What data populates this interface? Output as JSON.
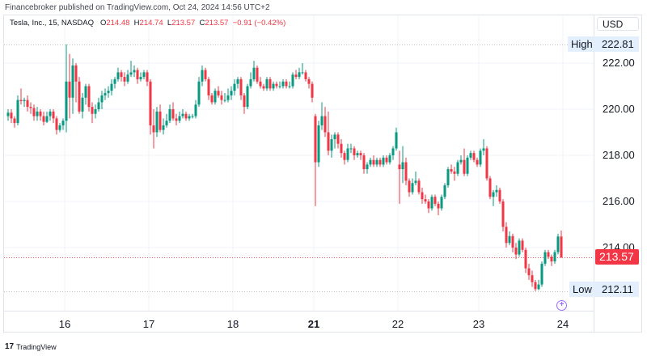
{
  "publish_line": "Financebroker published on TradingView.com, Oct 24, 2024 14:56 UTC+2",
  "legend": {
    "symbol": "Tesla, Inc., 15, NASDAQ",
    "o_label": "O",
    "o": "214.48",
    "h_label": "H",
    "h": "214.74",
    "l_label": "L",
    "l": "213.57",
    "c_label": "C",
    "c": "213.57",
    "change": "−0.91 (−0.42%)"
  },
  "currency": "USD",
  "high_tag": {
    "label": "High",
    "value": "222.81"
  },
  "low_tag": {
    "label": "Low",
    "value": "212.11"
  },
  "current_price": "213.57",
  "footer_logo": "TradingView",
  "colors": {
    "up": "#089981",
    "down": "#f23645",
    "event": "#9c6cf7"
  },
  "chart_data": {
    "type": "candlestick",
    "interval": "15",
    "yticks": [
      "222.00",
      "220.00",
      "218.00",
      "216.00",
      "214.00"
    ],
    "ylim": [
      211.5,
      223
    ],
    "high": 222.81,
    "low": 212.11,
    "last": 213.57,
    "xticks": [
      {
        "label": "16",
        "bar": 18,
        "bold": false
      },
      {
        "label": "17",
        "bar": 44,
        "bold": false
      },
      {
        "label": "18",
        "bar": 70,
        "bold": false
      },
      {
        "label": "21",
        "bar": 95,
        "bold": true
      },
      {
        "label": "22",
        "bar": 121,
        "bold": false
      },
      {
        "label": "23",
        "bar": 146,
        "bold": false
      },
      {
        "label": "24",
        "bar": 172,
        "bold": false
      }
    ],
    "ohlc": [
      [
        219.7,
        220.0,
        219.5,
        219.85
      ],
      [
        219.85,
        220.0,
        219.4,
        219.6
      ],
      [
        219.6,
        219.7,
        219.2,
        219.4
      ],
      [
        219.4,
        220.6,
        219.3,
        220.4
      ],
      [
        220.4,
        220.9,
        220.2,
        220.35
      ],
      [
        220.35,
        220.5,
        220.1,
        220.4
      ],
      [
        220.4,
        220.6,
        219.9,
        220.1
      ],
      [
        220.1,
        220.3,
        219.8,
        220.05
      ],
      [
        220.05,
        220.2,
        219.5,
        219.7
      ],
      [
        219.7,
        220.1,
        219.5,
        219.9
      ],
      [
        219.9,
        220.0,
        219.5,
        219.7
      ],
      [
        219.7,
        219.9,
        219.3,
        219.45
      ],
      [
        219.45,
        219.9,
        219.4,
        219.7
      ],
      [
        219.7,
        220.0,
        219.5,
        219.9
      ],
      [
        219.9,
        220.0,
        219.4,
        219.6
      ],
      [
        219.6,
        219.7,
        218.9,
        219.1
      ],
      [
        219.1,
        219.4,
        219.0,
        219.3
      ],
      [
        219.3,
        219.6,
        219.1,
        219.5
      ],
      [
        219.5,
        222.81,
        219.0,
        221.2
      ],
      [
        221.2,
        222.4,
        219.6,
        220.5
      ],
      [
        220.5,
        222.2,
        219.8,
        221.9
      ],
      [
        221.9,
        222.0,
        220.3,
        221.2
      ],
      [
        221.2,
        221.4,
        219.8,
        219.9
      ],
      [
        219.9,
        220.7,
        219.6,
        220.5
      ],
      [
        220.5,
        221.1,
        220.2,
        221.0
      ],
      [
        221.0,
        221.1,
        219.9,
        220.1
      ],
      [
        220.1,
        220.3,
        219.4,
        219.8
      ],
      [
        219.8,
        220.2,
        219.6,
        220.0
      ],
      [
        220.0,
        220.5,
        219.9,
        220.3
      ],
      [
        220.3,
        220.8,
        220.0,
        220.6
      ],
      [
        220.6,
        220.9,
        220.4,
        220.7
      ],
      [
        220.7,
        221.0,
        220.5,
        220.8
      ],
      [
        220.8,
        221.3,
        220.6,
        221.1
      ],
      [
        221.1,
        221.4,
        220.9,
        221.3
      ],
      [
        221.3,
        221.8,
        221.2,
        221.6
      ],
      [
        221.6,
        221.7,
        221.2,
        221.4
      ],
      [
        221.4,
        221.6,
        221.0,
        221.2
      ],
      [
        221.2,
        221.7,
        221.1,
        221.5
      ],
      [
        221.5,
        222.1,
        221.4,
        221.6
      ],
      [
        221.6,
        221.9,
        221.4,
        221.7
      ],
      [
        221.7,
        221.8,
        221.1,
        221.3
      ],
      [
        221.3,
        221.6,
        221.2,
        221.4
      ],
      [
        221.4,
        221.7,
        221.3,
        221.6
      ],
      [
        221.6,
        221.7,
        221.0,
        221.2
      ],
      [
        221.2,
        221.3,
        218.9,
        219.3
      ],
      [
        219.3,
        220.0,
        218.3,
        219.0
      ],
      [
        219.0,
        220.1,
        218.8,
        219.9
      ],
      [
        219.9,
        220.2,
        219.0,
        219.1
      ],
      [
        219.1,
        219.6,
        218.9,
        219.3
      ],
      [
        219.3,
        219.8,
        219.2,
        219.5
      ],
      [
        219.5,
        220.2,
        219.4,
        220.0
      ],
      [
        220.0,
        220.3,
        219.5,
        219.6
      ],
      [
        219.6,
        219.8,
        219.3,
        219.5
      ],
      [
        219.5,
        219.9,
        219.4,
        219.7
      ],
      [
        219.7,
        220.0,
        219.6,
        219.8
      ],
      [
        219.8,
        219.9,
        219.5,
        219.6
      ],
      [
        219.6,
        219.8,
        219.5,
        219.7
      ],
      [
        219.7,
        219.8,
        219.6,
        219.7
      ],
      [
        219.7,
        220.4,
        219.6,
        220.2
      ],
      [
        220.2,
        221.4,
        220.1,
        221.2
      ],
      [
        221.2,
        221.9,
        221.0,
        221.7
      ],
      [
        221.7,
        221.8,
        221.2,
        221.3
      ],
      [
        221.3,
        221.4,
        220.4,
        220.6
      ],
      [
        220.6,
        220.7,
        220.2,
        220.3
      ],
      [
        220.3,
        220.9,
        220.2,
        220.8
      ],
      [
        220.8,
        221.0,
        220.5,
        220.6
      ],
      [
        220.6,
        220.8,
        220.2,
        220.4
      ],
      [
        220.4,
        220.7,
        220.3,
        220.4
      ],
      [
        220.4,
        220.9,
        220.3,
        220.6
      ],
      [
        220.6,
        221.0,
        220.4,
        220.8
      ],
      [
        220.8,
        221.3,
        220.6,
        221.1
      ],
      [
        221.1,
        221.4,
        220.9,
        221.3
      ],
      [
        221.3,
        221.4,
        220.4,
        220.6
      ],
      [
        220.6,
        220.7,
        219.8,
        220.1
      ],
      [
        220.1,
        221.1,
        220.0,
        221.0
      ],
      [
        221.0,
        221.6,
        220.9,
        221.3
      ],
      [
        221.3,
        222.1,
        221.2,
        221.8
      ],
      [
        221.8,
        221.9,
        221.1,
        221.2
      ],
      [
        221.2,
        221.4,
        220.9,
        221.0
      ],
      [
        221.0,
        221.1,
        220.8,
        220.9
      ],
      [
        220.9,
        221.4,
        220.8,
        221.3
      ],
      [
        221.3,
        221.4,
        220.8,
        220.9
      ],
      [
        220.9,
        221.2,
        220.8,
        221.1
      ],
      [
        221.1,
        221.2,
        220.9,
        221.0
      ],
      [
        221.0,
        221.2,
        220.9,
        221.0
      ],
      [
        221.0,
        221.3,
        220.9,
        221.2
      ],
      [
        221.2,
        221.3,
        220.9,
        221.0
      ],
      [
        221.0,
        221.2,
        220.9,
        221.0
      ],
      [
        221.0,
        221.6,
        220.9,
        221.5
      ],
      [
        221.5,
        221.7,
        221.3,
        221.4
      ],
      [
        221.4,
        221.8,
        221.3,
        221.6
      ],
      [
        221.6,
        222.0,
        221.5,
        221.6
      ],
      [
        221.6,
        221.7,
        221.2,
        221.3
      ],
      [
        221.3,
        221.4,
        220.9,
        221.1
      ],
      [
        221.1,
        221.2,
        220.3,
        220.5
      ],
      [
        219.7,
        219.8,
        215.8,
        217.7
      ],
      [
        217.7,
        219.5,
        217.5,
        219.3
      ],
      [
        219.3,
        220.3,
        219.1,
        219.7
      ],
      [
        219.7,
        220.1,
        218.8,
        219.0
      ],
      [
        219.0,
        219.9,
        218.0,
        218.2
      ],
      [
        218.2,
        218.9,
        217.9,
        218.7
      ],
      [
        218.7,
        219.0,
        218.3,
        218.9
      ],
      [
        218.9,
        219.0,
        218.3,
        218.5
      ],
      [
        218.5,
        218.7,
        217.9,
        218.1
      ],
      [
        218.1,
        218.2,
        217.6,
        217.8
      ],
      [
        217.8,
        218.5,
        217.7,
        218.3
      ],
      [
        218.3,
        218.5,
        218.1,
        218.3
      ],
      [
        218.3,
        218.4,
        217.8,
        218.0
      ],
      [
        218.0,
        218.2,
        217.9,
        218.1
      ],
      [
        218.1,
        218.2,
        217.8,
        218.0
      ],
      [
        218.0,
        218.1,
        217.2,
        217.4
      ],
      [
        217.4,
        217.7,
        217.2,
        217.6
      ],
      [
        217.6,
        217.9,
        217.5,
        217.8
      ],
      [
        217.8,
        218.0,
        217.5,
        217.6
      ],
      [
        217.6,
        217.9,
        217.5,
        217.8
      ],
      [
        217.8,
        217.9,
        217.5,
        217.6
      ],
      [
        217.6,
        218.0,
        217.5,
        217.9
      ],
      [
        217.9,
        218.0,
        217.6,
        217.7
      ],
      [
        217.7,
        218.1,
        217.6,
        218.0
      ],
      [
        218.0,
        218.4,
        217.8,
        218.3
      ],
      [
        218.3,
        219.2,
        218.2,
        219.0
      ],
      [
        217.6,
        218.2,
        215.9,
        217.4
      ],
      [
        217.4,
        218.4,
        216.8,
        217.7
      ],
      [
        217.7,
        217.9,
        216.7,
        216.9
      ],
      [
        216.9,
        217.0,
        216.2,
        216.4
      ],
      [
        216.4,
        217.0,
        216.3,
        216.8
      ],
      [
        216.8,
        217.3,
        216.7,
        216.9
      ],
      [
        216.9,
        217.0,
        216.3,
        216.4
      ],
      [
        216.4,
        216.6,
        215.9,
        216.1
      ],
      [
        216.1,
        216.3,
        215.9,
        216.0
      ],
      [
        216.0,
        216.1,
        215.5,
        215.7
      ],
      [
        215.7,
        216.3,
        215.6,
        216.2
      ],
      [
        216.2,
        216.3,
        215.8,
        215.9
      ],
      [
        215.9,
        216.0,
        215.4,
        215.7
      ],
      [
        215.7,
        216.3,
        215.6,
        216.2
      ],
      [
        216.2,
        216.8,
        216.1,
        216.7
      ],
      [
        216.7,
        217.5,
        216.6,
        217.4
      ],
      [
        217.4,
        217.6,
        217.2,
        217.3
      ],
      [
        217.3,
        217.5,
        216.9,
        217.2
      ],
      [
        217.2,
        217.8,
        217.1,
        217.7
      ],
      [
        217.7,
        218.0,
        217.6,
        217.8
      ],
      [
        217.8,
        218.3,
        217.1,
        217.2
      ],
      [
        217.2,
        218.0,
        217.1,
        217.9
      ],
      [
        217.9,
        218.2,
        217.8,
        218.1
      ],
      [
        218.1,
        218.2,
        217.7,
        217.8
      ],
      [
        217.8,
        217.9,
        217.5,
        217.6
      ],
      [
        217.6,
        218.3,
        217.5,
        218.2
      ],
      [
        218.2,
        218.7,
        218.0,
        218.3
      ],
      [
        218.3,
        218.4,
        216.9,
        217.0
      ],
      [
        217.0,
        217.1,
        216.1,
        216.2
      ],
      [
        216.2,
        216.5,
        215.8,
        216.4
      ],
      [
        216.4,
        216.7,
        216.2,
        216.5
      ],
      [
        216.5,
        216.6,
        215.9,
        216.0
      ],
      [
        216.0,
        216.1,
        214.7,
        214.9
      ],
      [
        214.9,
        215.1,
        214.0,
        214.2
      ],
      [
        214.2,
        214.7,
        214.1,
        214.5
      ],
      [
        214.5,
        214.6,
        213.8,
        214.0
      ],
      [
        214.0,
        214.2,
        213.5,
        213.7
      ],
      [
        213.7,
        214.4,
        213.6,
        214.3
      ],
      [
        214.3,
        214.4,
        213.8,
        213.9
      ],
      [
        213.9,
        214.0,
        212.9,
        213.1
      ],
      [
        213.1,
        213.3,
        212.6,
        212.8
      ],
      [
        212.8,
        213.0,
        212.3,
        212.5
      ],
      [
        212.5,
        212.6,
        212.11,
        212.2
      ],
      [
        212.2,
        212.6,
        212.15,
        212.4
      ],
      [
        212.4,
        213.4,
        212.3,
        213.3
      ],
      [
        213.3,
        213.9,
        213.2,
        213.8
      ],
      [
        213.8,
        213.9,
        213.5,
        213.6
      ],
      [
        213.6,
        213.7,
        213.2,
        213.4
      ],
      [
        213.4,
        213.9,
        213.3,
        213.8
      ],
      [
        213.8,
        214.6,
        213.7,
        214.48
      ],
      [
        214.48,
        214.74,
        213.57,
        213.57
      ]
    ]
  }
}
